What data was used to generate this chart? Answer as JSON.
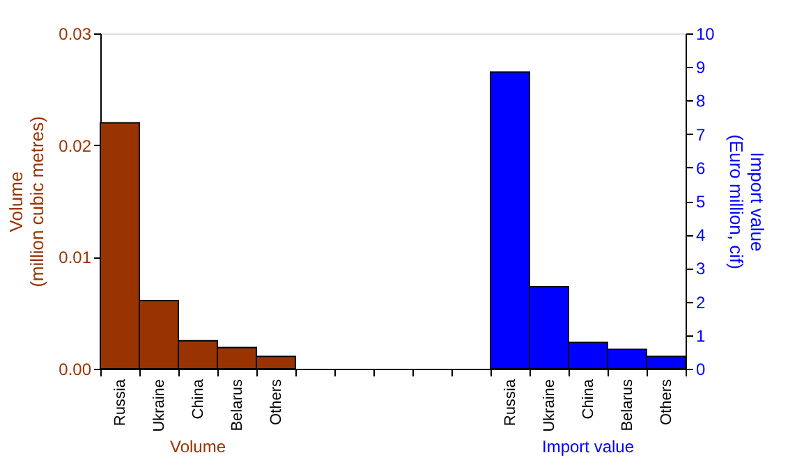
{
  "chart_data": {
    "type": "bar",
    "categories": [
      "Russia",
      "Ukraine",
      "China",
      "Belarus",
      "Others",
      null,
      null,
      null,
      null,
      null,
      "Russia",
      "Ukraine",
      "China",
      "Belarus",
      "Others"
    ],
    "series": [
      {
        "name": "Volume",
        "color": "#993300",
        "values": [
          0.022,
          0.0061,
          0.0025,
          0.0019,
          0.0011,
          null,
          null,
          null,
          null,
          null,
          null,
          null,
          null,
          null,
          null
        ]
      },
      {
        "name": "Import value",
        "color": "#0000ff",
        "axis": "y2",
        "values": [
          null,
          null,
          null,
          null,
          null,
          null,
          null,
          null,
          null,
          null,
          8.85,
          2.45,
          0.79,
          0.58,
          0.37
        ]
      }
    ],
    "ylabel": "Volume\n(million cubic metres)",
    "y2label": "Import value\n(Euro million, cif)",
    "ylim": [
      0,
      0.03
    ],
    "yticks": [
      {
        "value": 0,
        "label": "0.00"
      },
      {
        "value": 0.01,
        "label": "0.01"
      },
      {
        "value": 0.02,
        "label": "0.02"
      },
      {
        "value": 0.03,
        "label": "0.03"
      }
    ],
    "y2lim": [
      0,
      10
    ],
    "y2ticks": [
      0,
      1,
      2,
      3,
      4,
      5,
      6,
      7,
      8,
      9,
      10
    ]
  }
}
